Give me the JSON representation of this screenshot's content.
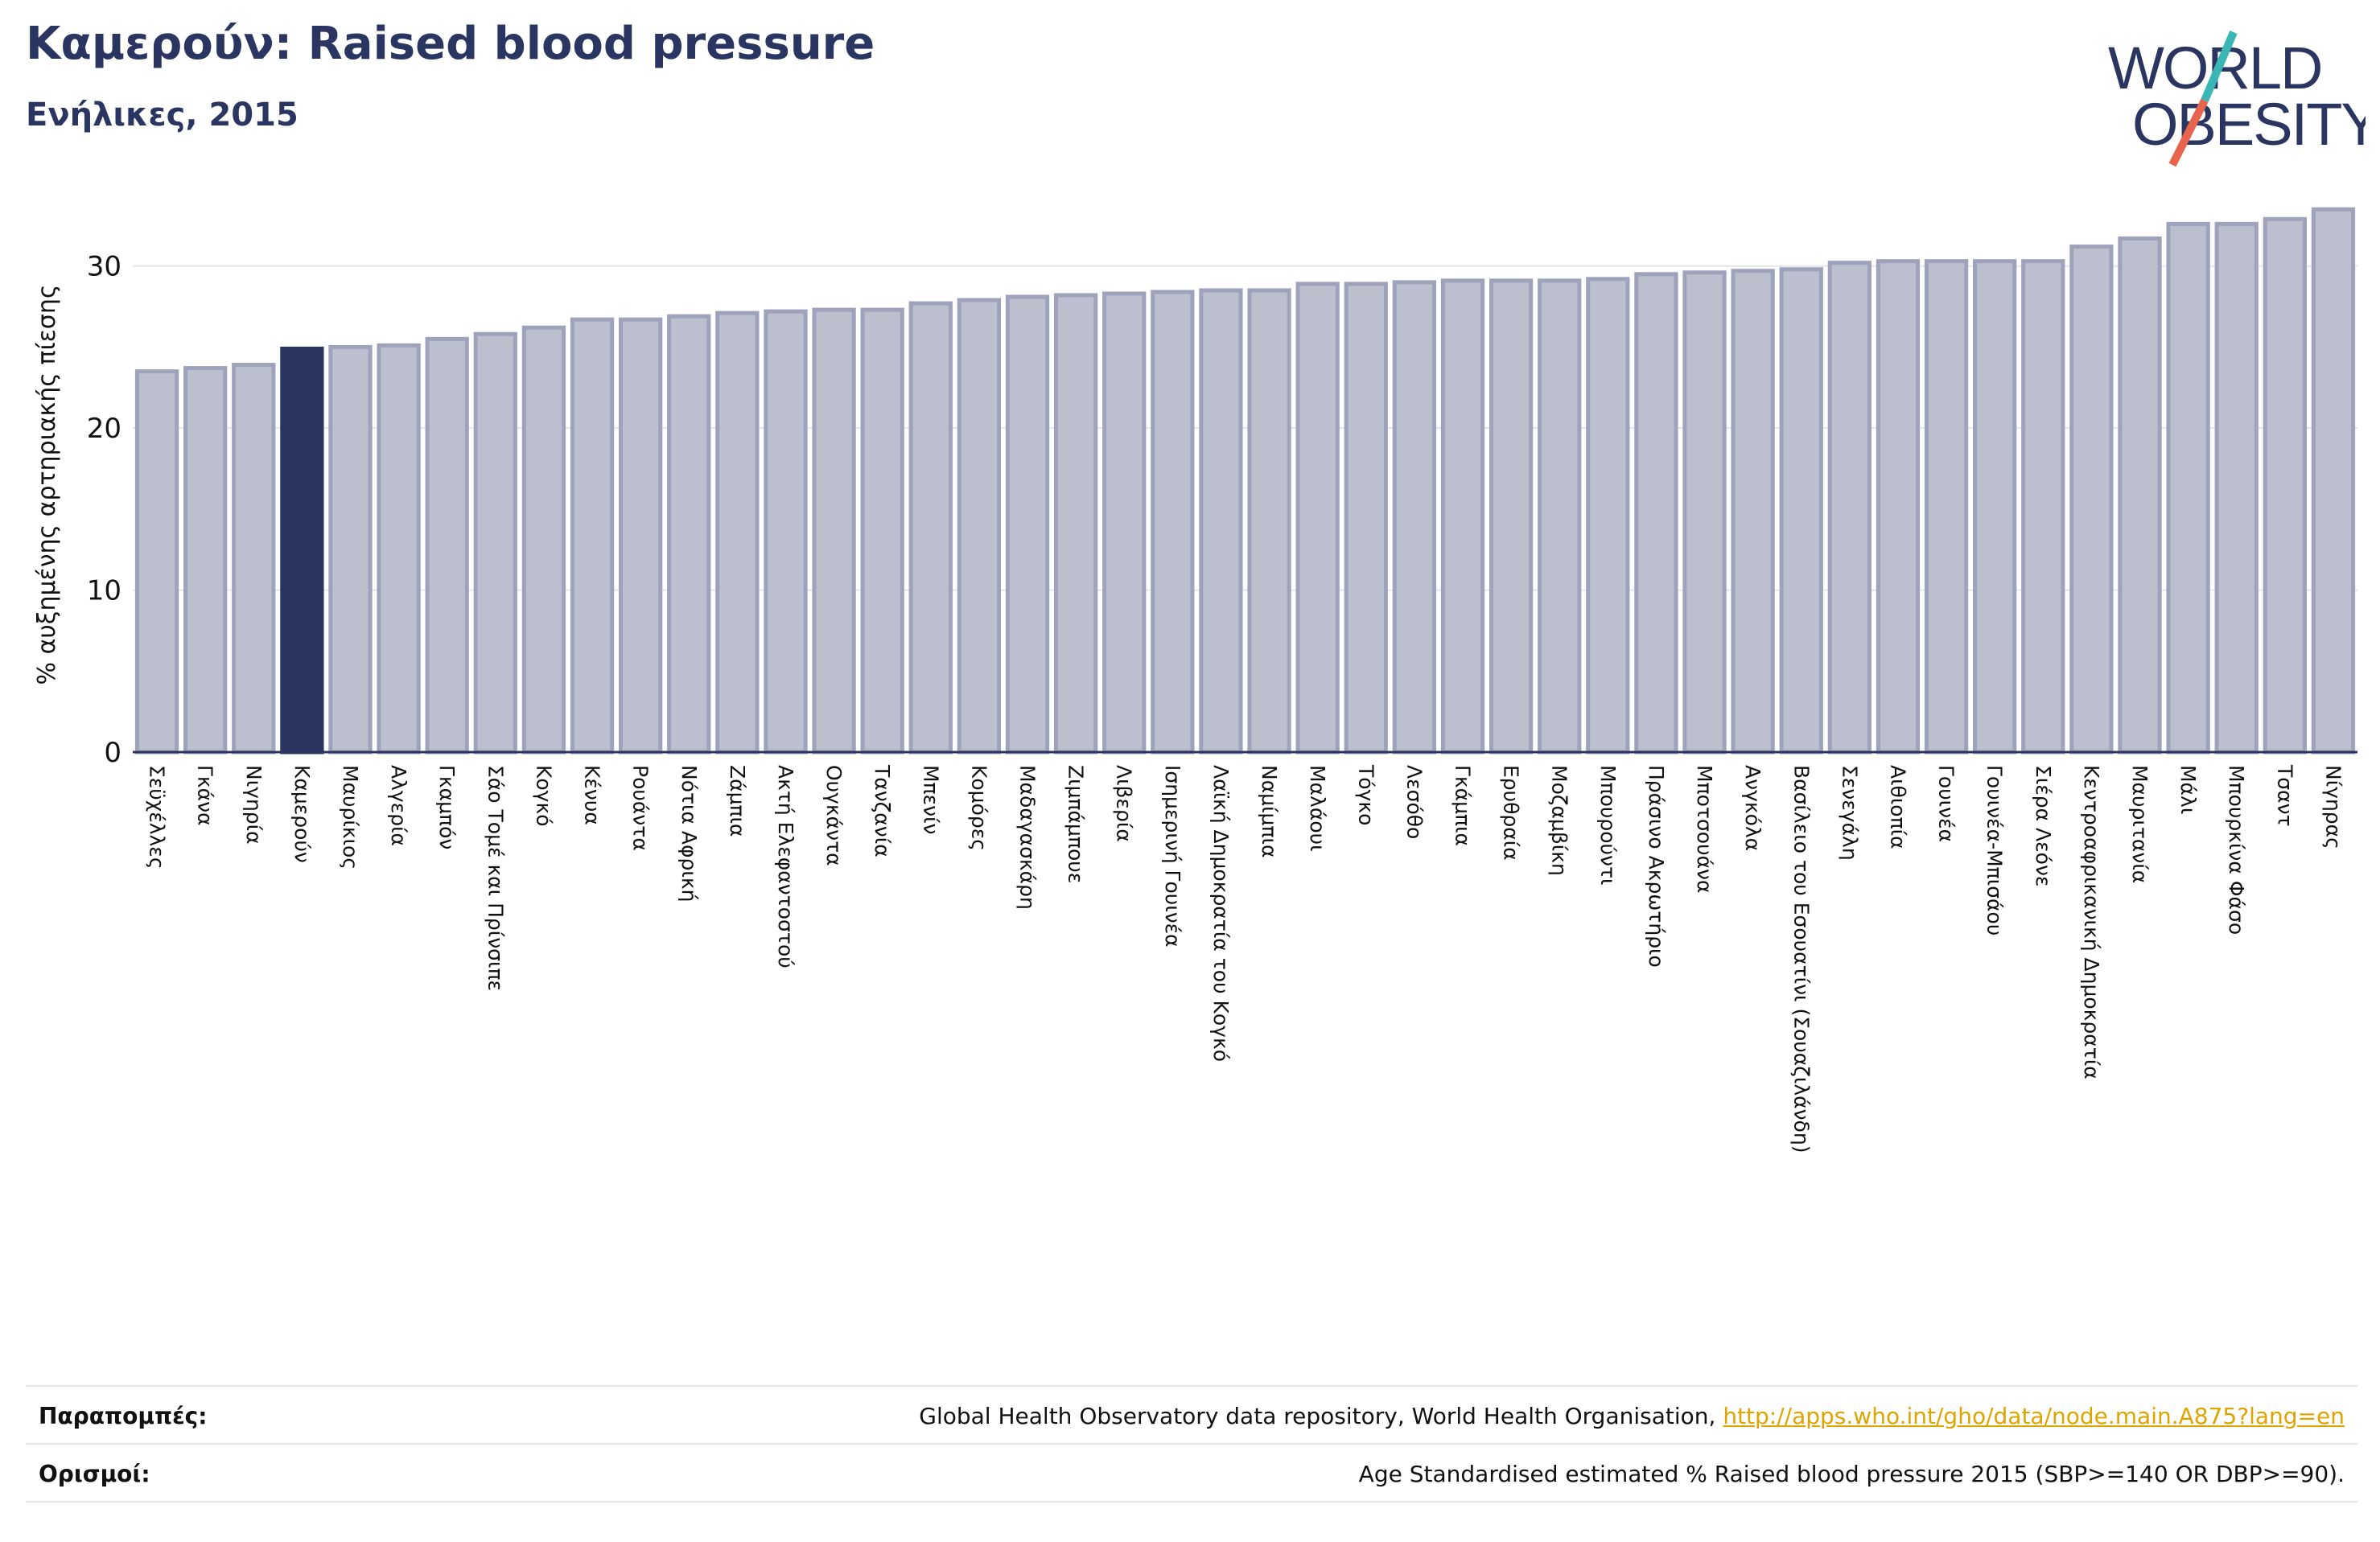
{
  "header": {
    "title": "Καμερούν: Raised blood pressure",
    "subtitle": "Ενήλικες, 2015"
  },
  "logo": {
    "line1": "WORLD",
    "line2": "OBESITY"
  },
  "colors": {
    "bar": "#bcbfce",
    "bar_border": "#9ea2bb",
    "highlight": "#2b3561",
    "grid": "#e6e6e6",
    "title": "#2b3561"
  },
  "chart_data": {
    "type": "bar",
    "ylabel": "% αυξημένης αρτηριακής πίεσης",
    "ylim": [
      0,
      35
    ],
    "yticks": [
      0,
      10,
      20,
      30
    ],
    "grid": true,
    "highlight": "Καμερούν",
    "categories": [
      "Σεϋχέλλες",
      "Γκάνα",
      "Νιγηρία",
      "Καμερούν",
      "Μαυρίκιος",
      "Αλγερία",
      "Γκαμπόν",
      "Σάο Τομέ και Πρίνσιπε",
      "Κογκό",
      "Κένυα",
      "Ρουάντα",
      "Νότια Αφρική",
      "Ζάμπια",
      "Ακτή Ελεφαντοστού",
      "Ουγκάντα",
      "Τανζανία",
      "Μπενίν",
      "Κομόρες",
      "Μαδαγασκάρη",
      "Ζιμπάμπουε",
      "Λιβερία",
      "Ισημερινή Γουινέα",
      "Λαϊκή Δημοκρατία του Κογκό",
      "Ναμίμπια",
      "Μαλάουι",
      "Τόγκο",
      "Λεσόθο",
      "Γκάμπια",
      "Ερυθραία",
      "Μοζαμβίκη",
      "Μπουρούντι",
      "Πράσινο Ακρωτήριο",
      "Μποτσουάνα",
      "Ανγκόλα",
      "Βασίλειο του Εσουατίνι (Σουαζιλάνδη)",
      "Σενεγάλη",
      "Αιθιοπία",
      "Γουινέα",
      "Γουινέα-Μπισάου",
      "Σιέρα Λεόνε",
      "Κεντροαφρικανική Δημοκρατία",
      "Μαυριτανία",
      "Μάλι",
      "Μπουρκίνα Φάσο",
      "Τσαντ",
      "Νίγηρας"
    ],
    "values": [
      23.5,
      23.7,
      23.9,
      24.9,
      25.0,
      25.1,
      25.5,
      25.8,
      26.2,
      26.7,
      26.7,
      26.9,
      27.1,
      27.2,
      27.3,
      27.3,
      27.7,
      27.9,
      28.1,
      28.2,
      28.3,
      28.4,
      28.5,
      28.5,
      28.9,
      28.9,
      29.0,
      29.1,
      29.1,
      29.1,
      29.2,
      29.5,
      29.6,
      29.7,
      29.8,
      30.2,
      30.3,
      30.3,
      30.3,
      30.3,
      31.2,
      31.7,
      32.6,
      32.6,
      32.9,
      33.5
    ]
  },
  "footer": {
    "references_label": "Παραπομπές:",
    "references_text": "Global Health Observatory data repository, World Health Organisation, ",
    "references_link": "http://apps.who.int/gho/data/node.main.A875?lang=en",
    "definitions_label": "Ορισμοί:",
    "definitions_text": "Age Standardised estimated % Raised blood pressure 2015 (SBP>=140 OR DBP>=90)."
  }
}
